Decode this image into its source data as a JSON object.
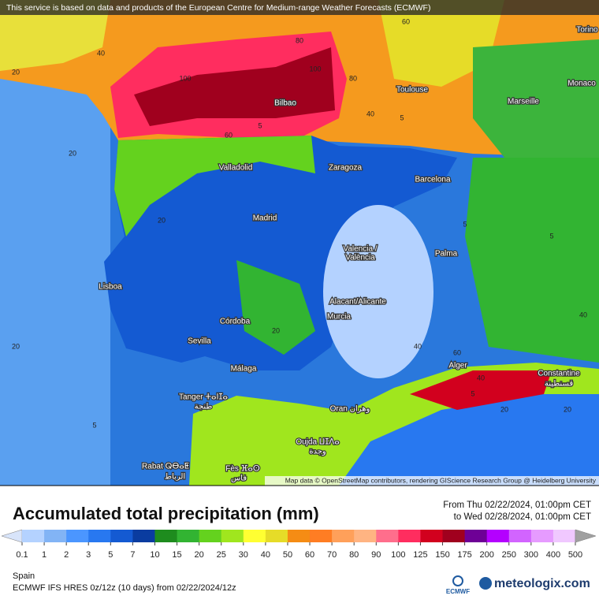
{
  "header": {
    "notice": "This service is based on data and products of the European Centre for Medium-range Weather Forecasts (ECMWF)"
  },
  "map": {
    "cities": [
      "Torino",
      "Monaco",
      "Toulouse",
      "Marseille",
      "Bilbao",
      "Valladolid",
      "Zaragoza",
      "Barcelona",
      "Madrid",
      "Lisboa",
      "Valencia /",
      "València",
      "Palma",
      "Alacant/Alicante",
      "Murcia",
      "Córdoba",
      "Sevilla",
      "Málaga",
      "Alger",
      "Constantine",
      "قسنطينة",
      "Tanger ⵜⴰⵏⵊⴰ",
      "طنجة",
      "Oran وهران",
      "Oujda ⵡⵊⴷⴰ",
      "وجدة",
      "Rabat ⵕⴱⴰⵟ",
      "الرباط",
      "Fès ⴼⴰⵙ",
      "فاس"
    ],
    "contour_labels": [
      "40",
      "20",
      "60",
      "80",
      "100",
      "100",
      "80",
      "60",
      "40",
      "20",
      "20",
      "5",
      "5",
      "5",
      "20",
      "40",
      "20",
      "5",
      "5",
      "40",
      "60",
      "40",
      "20",
      "20",
      "5"
    ],
    "attribution": "Map data © OpenStreetMap contributors, rendering GIScience Research Group @ Heidelberg University"
  },
  "legend": {
    "title": "Accumulated total precipitation (mm)",
    "period_from": "From Thu 02/22/2024, 01:00pm CET",
    "period_to": "to Wed 02/28/2024, 01:00pm CET",
    "ticks": [
      0.1,
      1,
      2,
      3,
      5,
      7,
      10,
      15,
      20,
      25,
      30,
      40,
      50,
      60,
      70,
      80,
      90,
      100,
      125,
      150,
      175,
      200,
      250,
      300,
      400,
      500
    ],
    "colors": [
      "#f4f4fc",
      "#d8e4fa",
      "#b4d2ff",
      "#82b4f5",
      "#4b96ff",
      "#2878f0",
      "#145ad2",
      "#0a3ca0",
      "#1e8c1e",
      "#32b432",
      "#64d21e",
      "#a0e61e",
      "#ffff32",
      "#e6dc28",
      "#f58c14",
      "#ff7d23",
      "#ffa05a",
      "#ffb482",
      "#ff6e8c",
      "#ff2d5f",
      "#d2001e",
      "#a0001e",
      "#6e0096",
      "#b400ff",
      "#d264ff",
      "#e69bff",
      "#f0c8ff",
      "#f8f0ff",
      "#d2d2d2",
      "#a0a0a0"
    ]
  },
  "footer": {
    "region": "Spain",
    "model": "ECMWF IFS HRES 0z/12z (10 days) from  02/22/2024/12z",
    "ecmwf_logo": "ECMWF",
    "brand": "meteologix.com"
  }
}
